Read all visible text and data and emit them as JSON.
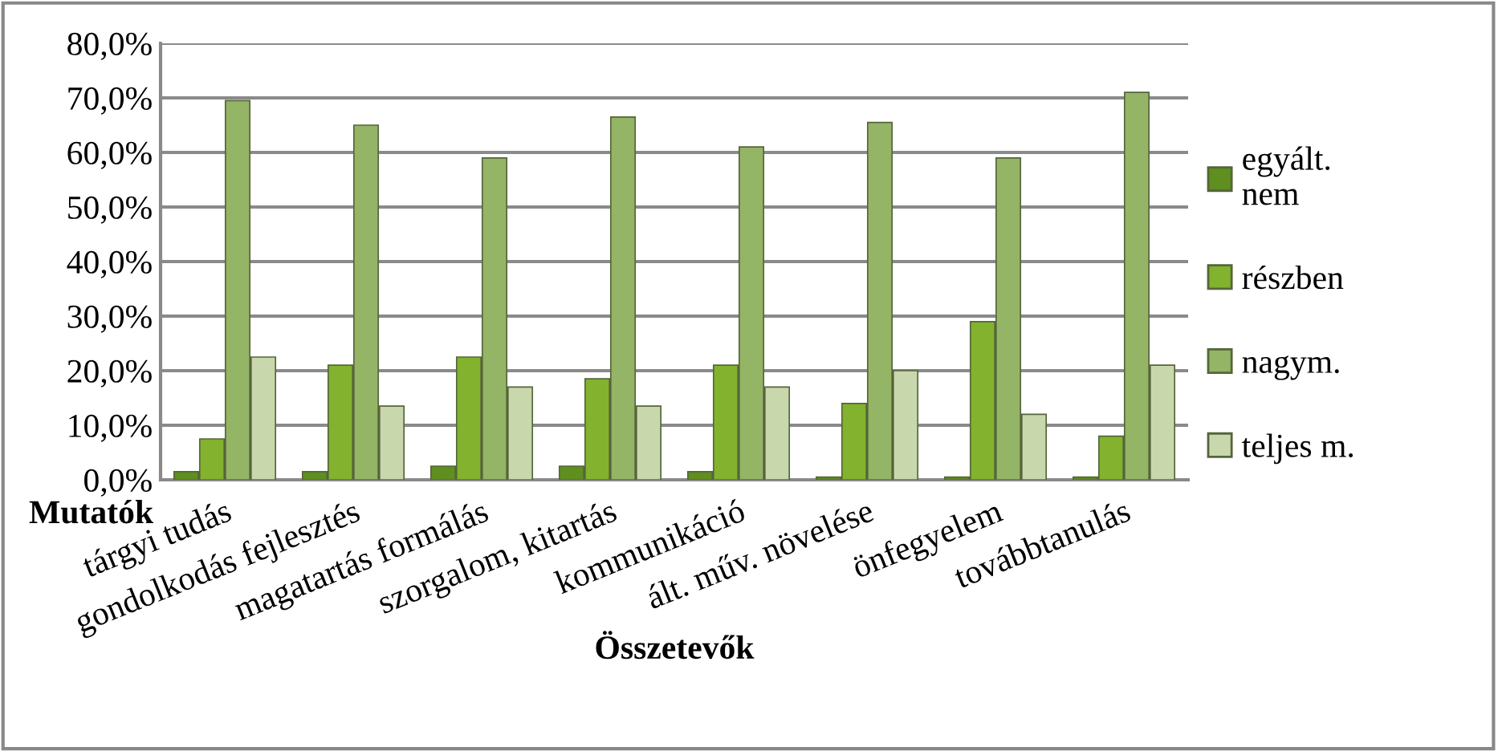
{
  "chart_data": {
    "type": "bar",
    "xlabel": "Összetevők",
    "annotations": [
      "Mutatók"
    ],
    "categories": [
      "tárgyi tudás",
      "gondolkodás fejlesztés",
      "magatartás formálás",
      "szorgalom, kitartás",
      "kommunikáció",
      "ált. műv. növelése",
      "önfegyelem",
      "továbbtanulás"
    ],
    "series": [
      {
        "name": "egyált.\nnem",
        "color": "#5f8f1f",
        "values": [
          1.5,
          1.5,
          2.5,
          2.5,
          1.5,
          0.5,
          0.5,
          0.5
        ]
      },
      {
        "name": "részben",
        "color": "#82b22e",
        "values": [
          7.5,
          21,
          22.5,
          18.5,
          21,
          14,
          29,
          8
        ]
      },
      {
        "name": "nagym.",
        "color": "#94b466",
        "values": [
          69.5,
          65,
          59,
          66.5,
          61,
          65.5,
          59,
          71
        ]
      },
      {
        "name": "teljes m.",
        "color": "#c8d8ac",
        "values": [
          22.5,
          13.5,
          17,
          13.5,
          17,
          20,
          12,
          21
        ]
      }
    ],
    "ylim": [
      0,
      80
    ],
    "yticks": [
      {
        "value": 0,
        "label": "0,0%"
      },
      {
        "value": 10,
        "label": "10,0%"
      },
      {
        "value": 20,
        "label": "20,0%"
      },
      {
        "value": 30,
        "label": "30,0%"
      },
      {
        "value": 40,
        "label": "40,0%"
      },
      {
        "value": 50,
        "label": "50,0%"
      },
      {
        "value": 60,
        "label": "60,0%"
      },
      {
        "value": 70,
        "label": "70,0%"
      },
      {
        "value": 80,
        "label": "80,0%"
      }
    ],
    "grid": "y",
    "legend": "right"
  }
}
